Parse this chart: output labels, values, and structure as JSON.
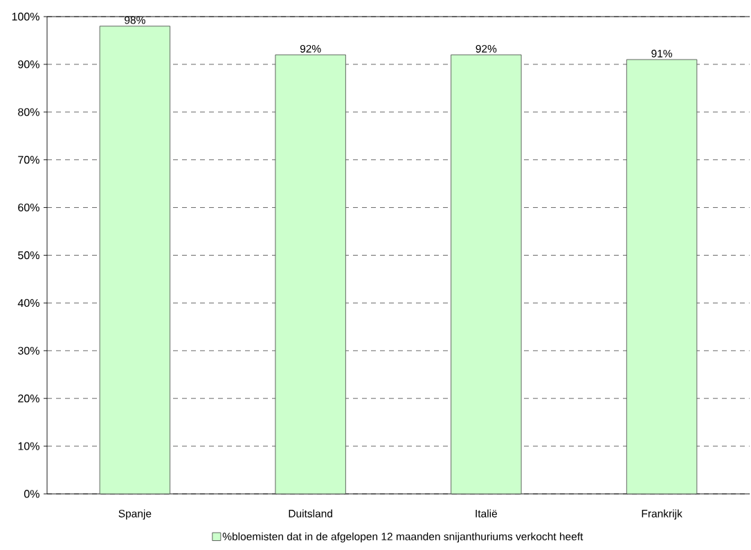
{
  "chart_data": {
    "type": "bar",
    "categories": [
      "Spanje",
      "Duitsland",
      "Italië",
      "Frankrijk"
    ],
    "series": [
      {
        "name": "%bloemisten dat in de afgelopen 12 maanden snijanthuriums verkocht heeft",
        "color": "#ccffcc",
        "values": [
          98,
          92,
          92,
          91
        ],
        "value_labels": [
          "98%",
          "92%",
          "92%",
          "91%"
        ]
      }
    ],
    "ylim": [
      0,
      100
    ],
    "yticks": [
      {
        "value": 0,
        "label": "0%"
      },
      {
        "value": 10,
        "label": "10%"
      },
      {
        "value": 20,
        "label": "20%"
      },
      {
        "value": 30,
        "label": "30%"
      },
      {
        "value": 40,
        "label": "40%"
      },
      {
        "value": 50,
        "label": "50%"
      },
      {
        "value": 60,
        "label": "60%"
      },
      {
        "value": 70,
        "label": "70%"
      },
      {
        "value": 80,
        "label": "80%"
      },
      {
        "value": 90,
        "label": "90%"
      },
      {
        "value": 100,
        "label": "100%"
      }
    ],
    "grid": "y",
    "legend": "bottom"
  }
}
